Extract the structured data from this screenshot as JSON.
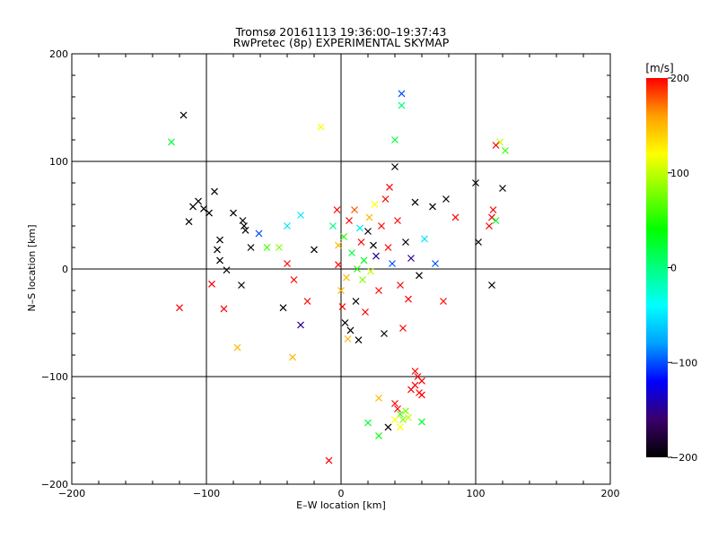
{
  "chart_data": {
    "type": "scatter",
    "title": "Tromsø 20161113 19:36:00–19:37:43",
    "subtitle": "RwPretec (8p) EXPERIMENTAL SKYMAP",
    "xlabel": "E–W location [km]",
    "ylabel": "N–S location [km]",
    "xlim": [
      -200,
      200
    ],
    "ylim": [
      -200,
      200
    ],
    "x_ticks": [
      -200,
      -100,
      0,
      100,
      200
    ],
    "y_ticks": [
      -200,
      -100,
      0,
      100,
      200
    ],
    "x_tick_labels": [
      "−200",
      "−100",
      "0",
      "100",
      "200"
    ],
    "y_tick_labels": [
      "−200",
      "−100",
      "0",
      "100",
      "200"
    ],
    "grid": true,
    "colorbar": {
      "label": "[m/s]",
      "range": [
        -200,
        200
      ],
      "ticks": [
        200,
        100,
        0,
        -100,
        -200
      ],
      "tick_labels": [
        "200",
        "100",
        "0",
        "−100",
        "−200"
      ],
      "palette": [
        "#000000",
        "#3a006a",
        "#0000ff",
        "#00a0ff",
        "#00ffff",
        "#00ff80",
        "#00ff00",
        "#80ff00",
        "#ffff00",
        "#ffa000",
        "#ff0000"
      ]
    },
    "points_large": [
      {
        "x": -117,
        "y": 143,
        "v": -200
      },
      {
        "x": -126,
        "y": 118,
        "v": 20
      },
      {
        "x": -120,
        "y": -36,
        "v": 200
      },
      {
        "x": -113,
        "y": 44,
        "v": -200
      },
      {
        "x": -110,
        "y": 58,
        "v": -200
      },
      {
        "x": -106,
        "y": 63,
        "v": -200
      },
      {
        "x": -102,
        "y": 56,
        "v": -200
      },
      {
        "x": -98,
        "y": 52,
        "v": -200
      },
      {
        "x": -94,
        "y": 72,
        "v": -200
      },
      {
        "x": -90,
        "y": 27,
        "v": -200
      },
      {
        "x": -92,
        "y": 18,
        "v": -200
      },
      {
        "x": -90,
        "y": 8,
        "v": -200
      },
      {
        "x": -96,
        "y": -14,
        "v": 200
      },
      {
        "x": -85,
        "y": -1,
        "v": -200
      },
      {
        "x": -80,
        "y": 52,
        "v": -200
      },
      {
        "x": -73,
        "y": 45,
        "v": -200
      },
      {
        "x": -72,
        "y": 40,
        "v": -200
      },
      {
        "x": -71,
        "y": 36,
        "v": -200
      },
      {
        "x": -67,
        "y": 20,
        "v": -200
      },
      {
        "x": -74,
        "y": -15,
        "v": -200
      },
      {
        "x": -87,
        "y": -37,
        "v": 200
      },
      {
        "x": -77,
        "y": -73,
        "v": 150
      },
      {
        "x": -61,
        "y": 33,
        "v": -100
      },
      {
        "x": -55,
        "y": 20,
        "v": 60
      },
      {
        "x": -46,
        "y": 20,
        "v": 80
      },
      {
        "x": -40,
        "y": 40,
        "v": -50
      },
      {
        "x": -30,
        "y": 50,
        "v": -50
      },
      {
        "x": -40,
        "y": 5,
        "v": 200
      },
      {
        "x": -35,
        "y": -10,
        "v": 200
      },
      {
        "x": -25,
        "y": -30,
        "v": 200
      },
      {
        "x": -30,
        "y": -52,
        "v": -150
      },
      {
        "x": -36,
        "y": -82,
        "v": 150
      },
      {
        "x": -43,
        "y": -36,
        "v": -200
      },
      {
        "x": -20,
        "y": 18,
        "v": -200
      },
      {
        "x": -15,
        "y": 132,
        "v": 120
      },
      {
        "x": -9,
        "y": -178,
        "v": 200
      },
      {
        "x": -6,
        "y": 40,
        "v": 0
      },
      {
        "x": -3,
        "y": 55,
        "v": 200
      },
      {
        "x": -2,
        "y": 22,
        "v": 150
      },
      {
        "x": -2,
        "y": 4,
        "v": 200
      },
      {
        "x": 0,
        "y": -20,
        "v": 150
      },
      {
        "x": 1,
        "y": -35,
        "v": 200
      },
      {
        "x": 2,
        "y": 30,
        "v": 50
      },
      {
        "x": 3,
        "y": -50,
        "v": -200
      },
      {
        "x": 4,
        "y": -8,
        "v": 150
      },
      {
        "x": 5,
        "y": -65,
        "v": 150
      },
      {
        "x": 6,
        "y": 45,
        "v": 200
      },
      {
        "x": 7,
        "y": -57,
        "v": -200
      },
      {
        "x": 8,
        "y": 15,
        "v": 20
      },
      {
        "x": 10,
        "y": 55,
        "v": 180
      },
      {
        "x": 11,
        "y": -30,
        "v": -200
      },
      {
        "x": 12,
        "y": 0,
        "v": 50
      },
      {
        "x": 13,
        "y": -66,
        "v": -200
      },
      {
        "x": 14,
        "y": 38,
        "v": -50
      },
      {
        "x": 15,
        "y": 25,
        "v": 200
      },
      {
        "x": 16,
        "y": -10,
        "v": 80
      },
      {
        "x": 17,
        "y": 8,
        "v": 30
      },
      {
        "x": 18,
        "y": -40,
        "v": 200
      },
      {
        "x": 20,
        "y": 35,
        "v": -200
      },
      {
        "x": 21,
        "y": 48,
        "v": 150
      },
      {
        "x": 22,
        "y": -2,
        "v": 100
      },
      {
        "x": 24,
        "y": 22,
        "v": -200
      },
      {
        "x": 25,
        "y": 60,
        "v": 120
      },
      {
        "x": 26,
        "y": 12,
        "v": -150
      },
      {
        "x": 28,
        "y": -20,
        "v": 200
      },
      {
        "x": 30,
        "y": 40,
        "v": 200
      },
      {
        "x": 32,
        "y": -60,
        "v": -200
      },
      {
        "x": 33,
        "y": 65,
        "v": 200
      },
      {
        "x": 35,
        "y": 20,
        "v": 200
      },
      {
        "x": 36,
        "y": 76,
        "v": 200
      },
      {
        "x": 38,
        "y": 5,
        "v": -100
      },
      {
        "x": 40,
        "y": 95,
        "v": -200
      },
      {
        "x": 40,
        "y": 120,
        "v": 20
      },
      {
        "x": 42,
        "y": 45,
        "v": 200
      },
      {
        "x": 44,
        "y": -15,
        "v": 200
      },
      {
        "x": 45,
        "y": 163,
        "v": -100
      },
      {
        "x": 45,
        "y": 152,
        "v": 0
      },
      {
        "x": 46,
        "y": -55,
        "v": 200
      },
      {
        "x": 48,
        "y": 25,
        "v": -200
      },
      {
        "x": 50,
        "y": -28,
        "v": 200
      },
      {
        "x": 52,
        "y": 10,
        "v": -150
      },
      {
        "x": 55,
        "y": 62,
        "v": -200
      },
      {
        "x": 58,
        "y": -6,
        "v": -200
      },
      {
        "x": 62,
        "y": 28,
        "v": -50
      },
      {
        "x": 68,
        "y": 58,
        "v": -200
      },
      {
        "x": 70,
        "y": 5,
        "v": -100
      },
      {
        "x": 76,
        "y": -30,
        "v": 200
      },
      {
        "x": 78,
        "y": 65,
        "v": -200
      },
      {
        "x": 85,
        "y": 48,
        "v": 200
      },
      {
        "x": 100,
        "y": 80,
        "v": -200
      },
      {
        "x": 110,
        "y": 40,
        "v": 200
      },
      {
        "x": 112,
        "y": 48,
        "v": 200
      },
      {
        "x": 113,
        "y": 55,
        "v": 200
      },
      {
        "x": 115,
        "y": 45,
        "v": 30
      },
      {
        "x": 120,
        "y": 75,
        "v": -200
      },
      {
        "x": 122,
        "y": 110,
        "v": 60
      },
      {
        "x": 118,
        "y": 118,
        "v": 100
      },
      {
        "x": 115,
        "y": 115,
        "v": 200
      },
      {
        "x": 102,
        "y": 25,
        "v": -200
      },
      {
        "x": 112,
        "y": -15,
        "v": -200
      },
      {
        "x": 55,
        "y": -95,
        "v": 200
      },
      {
        "x": 57,
        "y": -100,
        "v": 200
      },
      {
        "x": 60,
        "y": -104,
        "v": 200
      },
      {
        "x": 55,
        "y": -108,
        "v": 200
      },
      {
        "x": 52,
        "y": -112,
        "v": 200
      },
      {
        "x": 58,
        "y": -115,
        "v": 200
      },
      {
        "x": 28,
        "y": -120,
        "v": 150
      },
      {
        "x": 40,
        "y": -125,
        "v": 200
      },
      {
        "x": 42,
        "y": -130,
        "v": 200
      },
      {
        "x": 48,
        "y": -132,
        "v": 80
      },
      {
        "x": 44,
        "y": -135,
        "v": 60
      },
      {
        "x": 50,
        "y": -138,
        "v": 100
      },
      {
        "x": 40,
        "y": -140,
        "v": 120
      },
      {
        "x": 46,
        "y": -140,
        "v": 80
      },
      {
        "x": 44,
        "y": -147,
        "v": 120
      },
      {
        "x": 60,
        "y": -142,
        "v": 30
      },
      {
        "x": 20,
        "y": -143,
        "v": 20
      },
      {
        "x": 35,
        "y": -147,
        "v": -200
      },
      {
        "x": 28,
        "y": -155,
        "v": 40
      },
      {
        "x": 60,
        "y": -117,
        "v": 200
      }
    ]
  }
}
